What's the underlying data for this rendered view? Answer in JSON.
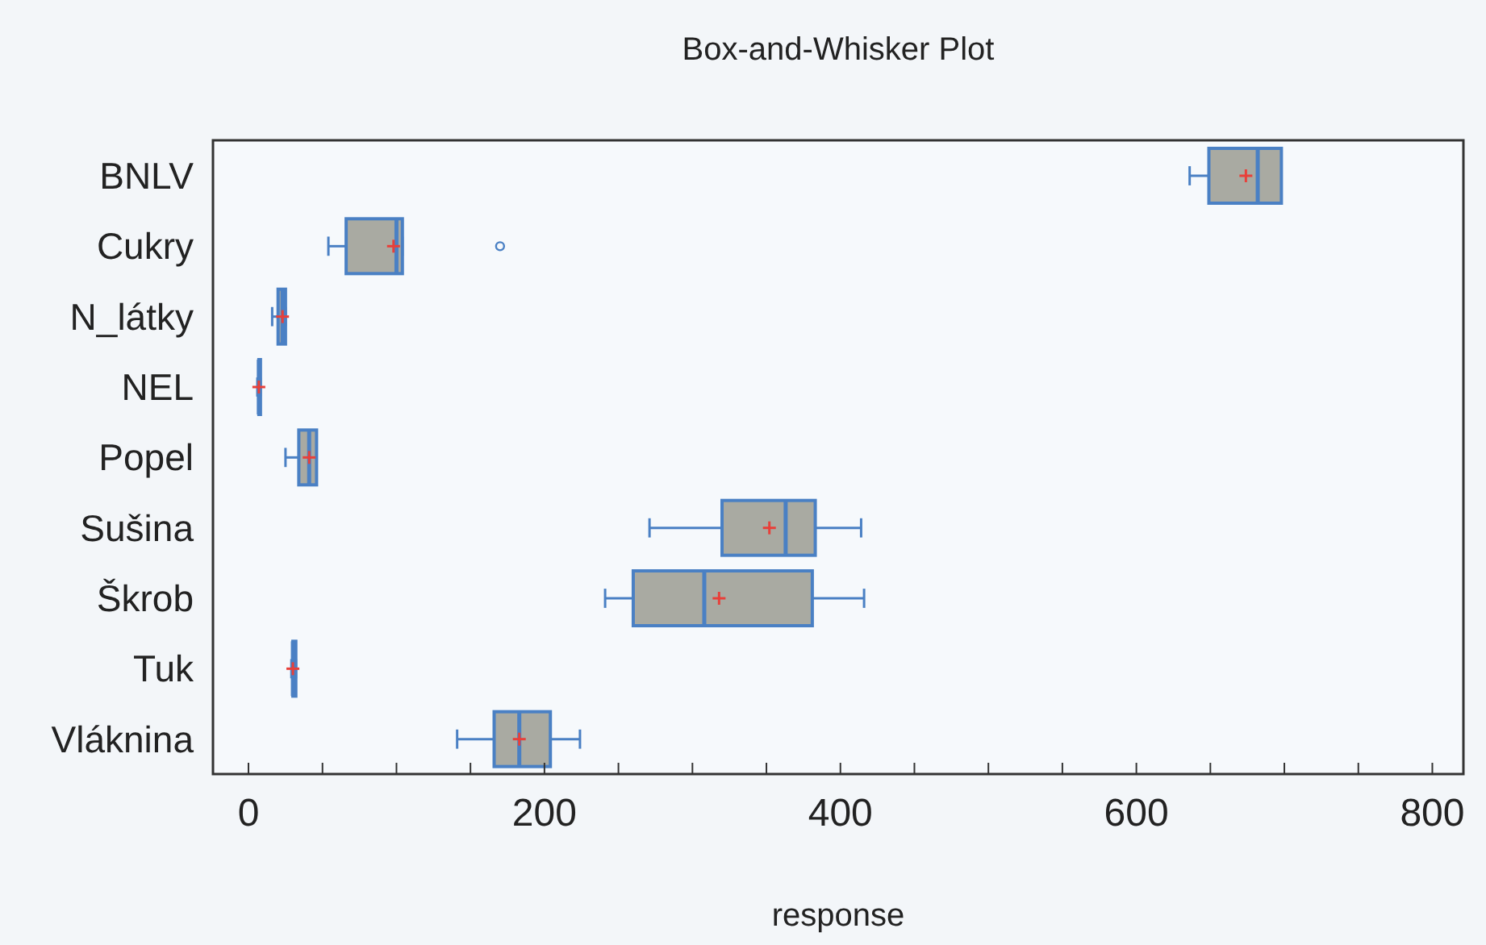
{
  "chart_data": {
    "type": "box",
    "title": "Box-and-Whisker Plot",
    "xlabel": "response",
    "orientation": "horizontal",
    "categories": [
      "BNLV",
      "Cukry",
      "N_látky",
      "NEL",
      "Popel",
      "Sušina",
      "Škrob",
      "Tuk",
      "Vláknina"
    ],
    "color": "#a9aaa2",
    "boxes": [
      {
        "low": 636,
        "q1": 649,
        "median": 682,
        "q3": 698,
        "high": 698,
        "mean": 674
      },
      {
        "low": 54,
        "q1": 66,
        "median": 100,
        "q3": 104,
        "high": 104,
        "mean": 98,
        "outliers": [
          170
        ]
      },
      {
        "low": 16,
        "q1": 20,
        "median": 23,
        "q3": 25,
        "high": 25,
        "mean": 23
      },
      {
        "low": 6,
        "q1": 7,
        "median": 7,
        "q3": 7,
        "high": 8,
        "mean": 7
      },
      {
        "low": 25,
        "q1": 34,
        "median": 41,
        "q3": 46,
        "high": 46,
        "mean": 41
      },
      {
        "low": 271,
        "q1": 320,
        "median": 363,
        "q3": 383,
        "high": 414,
        "mean": 352
      },
      {
        "low": 241,
        "q1": 260,
        "median": 308,
        "q3": 381,
        "high": 416,
        "mean": 318
      },
      {
        "low": 29,
        "q1": 30,
        "median": 30,
        "q3": 32,
        "high": 32,
        "mean": 30
      },
      {
        "low": 141,
        "q1": 166,
        "median": 183,
        "q3": 204,
        "high": 224,
        "mean": 183
      }
    ],
    "xlim": [
      -24,
      821
    ],
    "xticks": [
      0,
      {
        "value": 50,
        "label": null
      },
      {
        "value": 100,
        "label": null
      },
      {
        "value": 150,
        "label": null
      },
      200,
      {
        "value": 250,
        "label": null
      },
      {
        "value": 300,
        "label": null
      },
      {
        "value": 350,
        "label": null
      },
      400,
      {
        "value": 450,
        "label": null
      },
      {
        "value": 500,
        "label": null
      },
      {
        "value": 550,
        "label": null
      },
      600,
      {
        "value": 650,
        "label": null
      },
      {
        "value": 700,
        "label": null
      },
      {
        "value": 750,
        "label": null
      },
      800
    ]
  }
}
